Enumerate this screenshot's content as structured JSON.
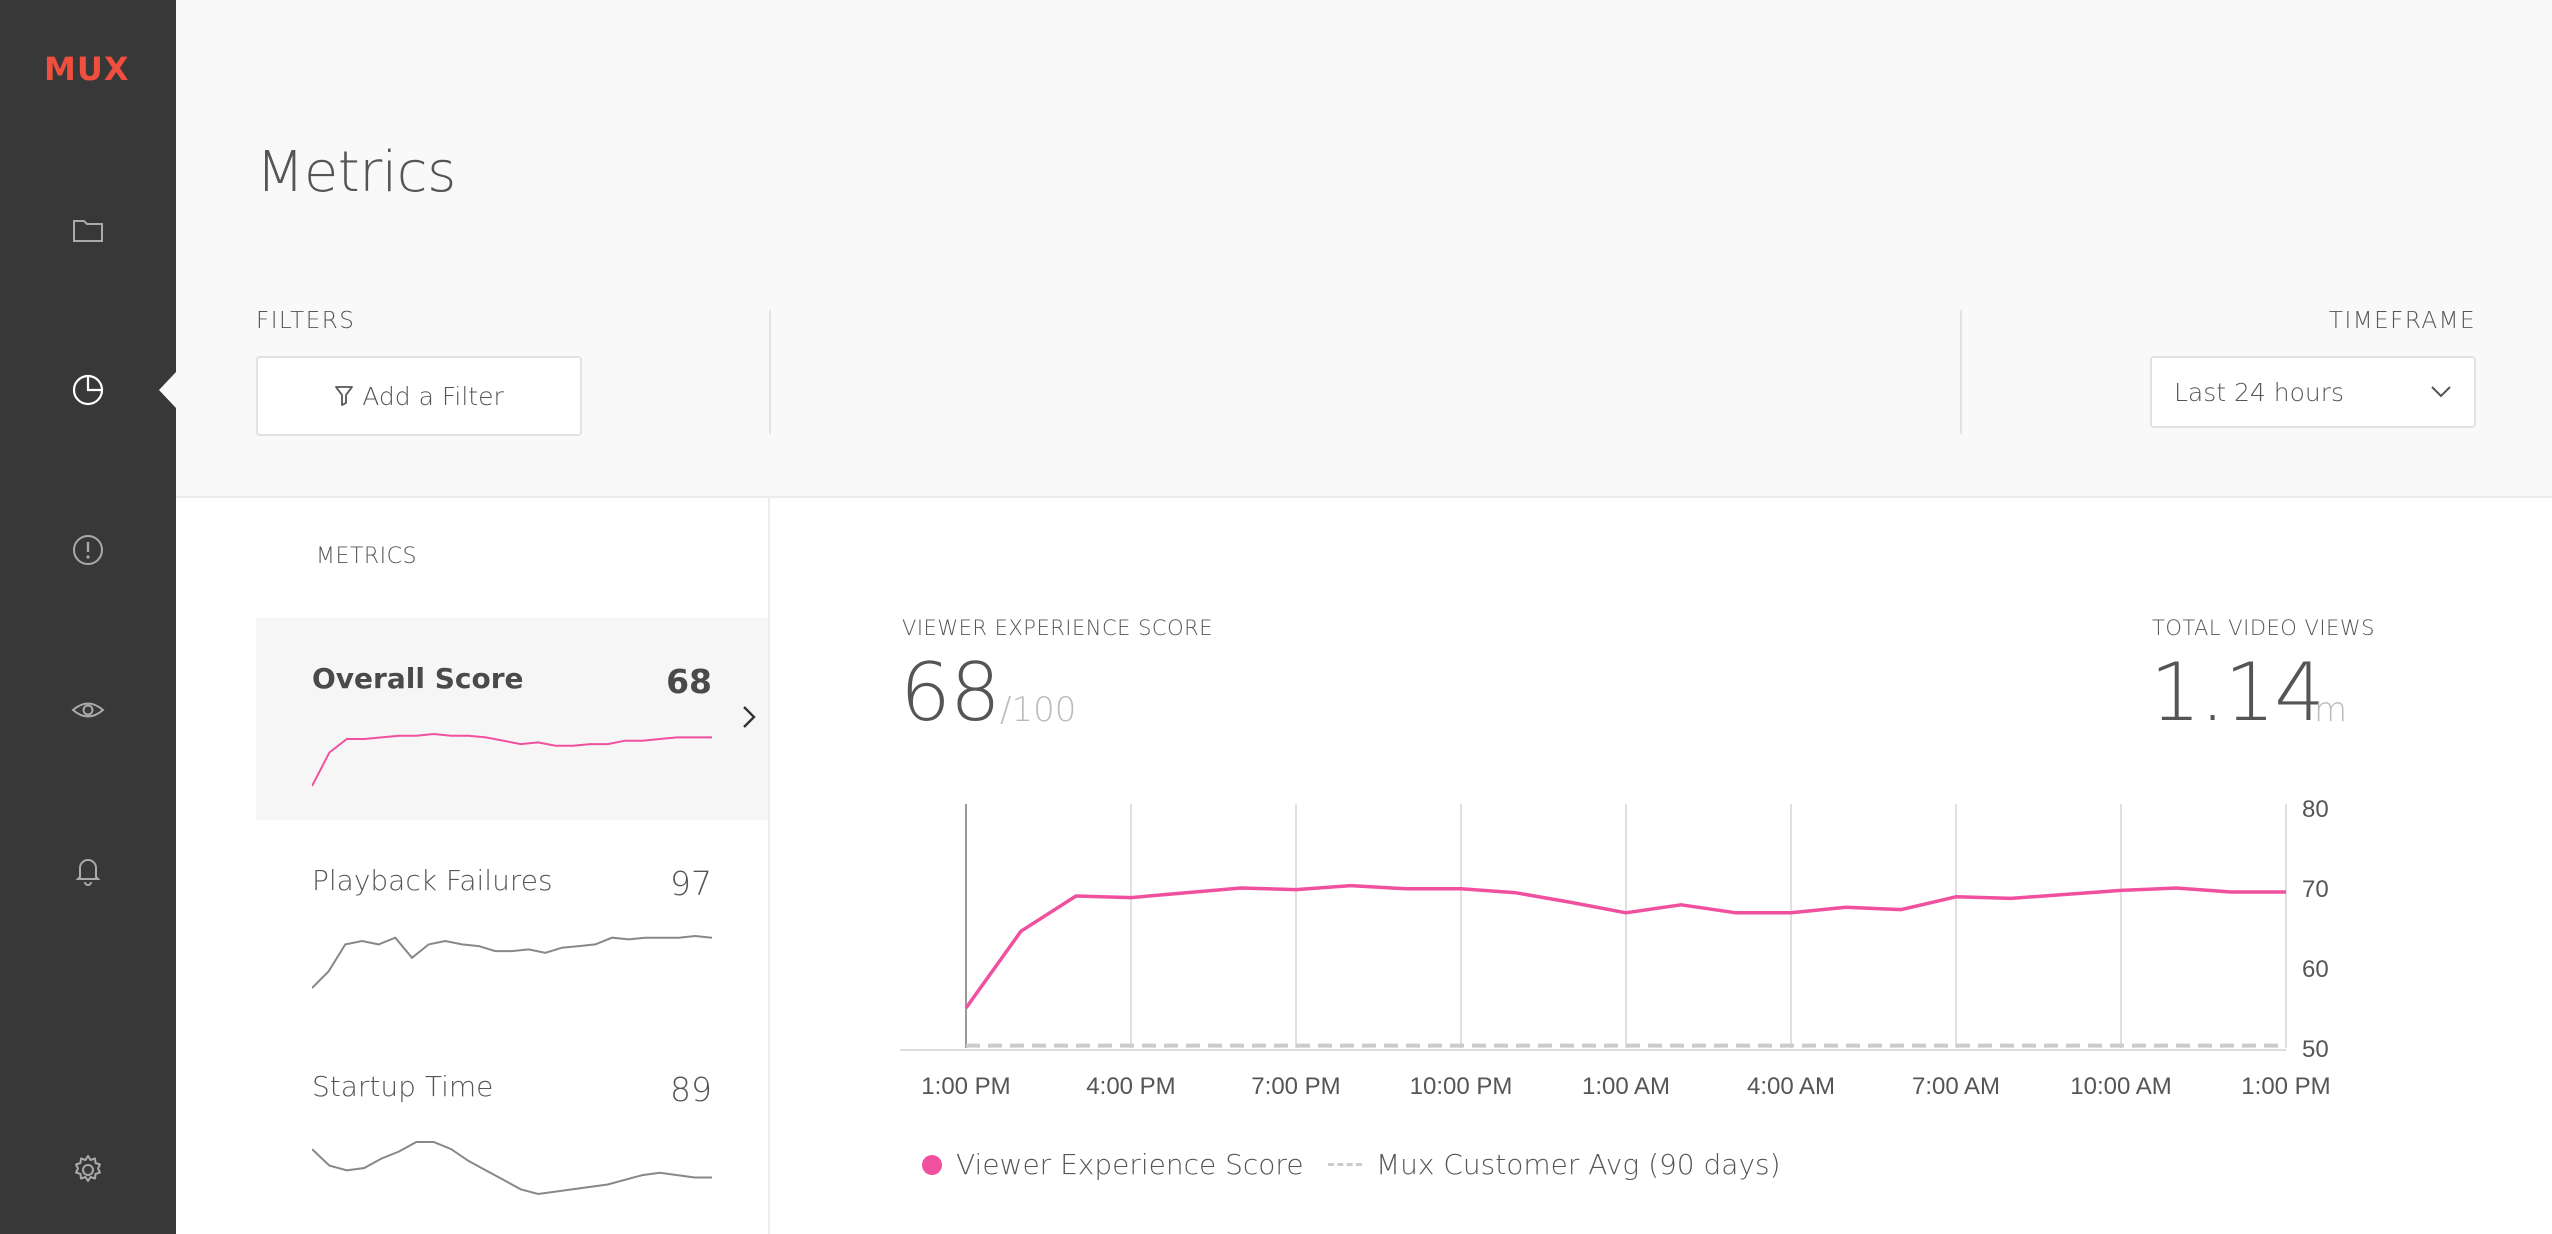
{
  "app": {
    "logo": "MUX",
    "accent": "#f0509e"
  },
  "sidebar": {
    "items": [
      {
        "name": "folder-icon"
      },
      {
        "name": "pie-chart-icon",
        "active": true
      },
      {
        "name": "alert-icon"
      },
      {
        "name": "eye-icon"
      },
      {
        "name": "bell-icon"
      },
      {
        "name": "gear-icon"
      }
    ]
  },
  "header": {
    "title": "Metrics",
    "filters_label": "FILTERS",
    "add_filter_label": "Add a Filter",
    "timeframe_label": "TIMEFRAME",
    "timeframe_value": "Last 24 hours"
  },
  "metrics_panel": {
    "label": "METRICS",
    "items": [
      {
        "name": "Overall Score",
        "value": "68",
        "selected": true,
        "spark": [
          55,
          65,
          69,
          69,
          69.5,
          70,
          70,
          70.5,
          70,
          70,
          69.5,
          68.5,
          67.5,
          68,
          67,
          67,
          67.5,
          67.5,
          68.5,
          68.5,
          69,
          69.5,
          69.5,
          69.5
        ]
      },
      {
        "name": "Playback Failures",
        "value": "97",
        "selected": false,
        "spark": [
          94,
          95,
          96.6,
          96.8,
          96.6,
          97,
          95.8,
          96.6,
          96.8,
          96.6,
          96.5,
          96.2,
          96.2,
          96.3,
          96.1,
          96.4,
          96.5,
          96.6,
          97,
          96.9,
          97,
          97,
          97,
          97.1,
          97
        ]
      },
      {
        "name": "Startup Time",
        "value": "89",
        "selected": false,
        "spark": [
          89.5,
          88.8,
          88.6,
          88.7,
          89.1,
          89.4,
          89.8,
          89.8,
          89.5,
          89.0,
          88.6,
          88.2,
          87.8,
          87.6,
          87.7,
          87.8,
          87.9,
          88.0,
          88.2,
          88.4,
          88.5,
          88.4,
          88.3,
          88.3
        ]
      }
    ]
  },
  "score": {
    "label": "VIEWER EXPERIENCE SCORE",
    "value": "68",
    "suffix": "/100"
  },
  "views": {
    "label": "TOTAL VIDEO VIEWS",
    "value": "1.14",
    "suffix": "m"
  },
  "chart_data": {
    "type": "line",
    "x": [
      "1:00 PM",
      "",
      "",
      "4:00 PM",
      "",
      "",
      "7:00 PM",
      "",
      "",
      "10:00 PM",
      "",
      "",
      "1:00 AM",
      "",
      "",
      "4:00 AM",
      "",
      "",
      "7:00 AM",
      "",
      "",
      "10:00 AM",
      "",
      "",
      "1:00 PM"
    ],
    "xticks": [
      "1:00 PM",
      "4:00 PM",
      "7:00 PM",
      "10:00 PM",
      "1:00 AM",
      "4:00 AM",
      "7:00 AM",
      "10:00 AM",
      "1:00 PM"
    ],
    "yticks": [
      "80",
      "70",
      "60",
      "50"
    ],
    "ylim": [
      50,
      80
    ],
    "series": [
      {
        "name": "Viewer Experience Score",
        "color": "#f0509e",
        "values": [
          55,
          64.6,
          69,
          68.8,
          69.4,
          70,
          69.8,
          70.3,
          69.9,
          69.9,
          69.4,
          68.2,
          66.9,
          67.9,
          66.9,
          66.9,
          67.6,
          67.3,
          68.9,
          68.7,
          69.2,
          69.7,
          70,
          69.5,
          69.5
        ]
      },
      {
        "name": "Mux Customer Avg (90 days)",
        "color": "#cccccc",
        "dashed": true,
        "values": [
          50.3,
          50.3,
          50.3,
          50.3,
          50.3,
          50.3,
          50.3,
          50.3,
          50.3,
          50.3,
          50.3,
          50.3,
          50.3,
          50.3,
          50.3,
          50.3,
          50.3,
          50.3,
          50.3,
          50.3,
          50.3,
          50.3,
          50.3,
          50.3,
          50.3
        ]
      }
    ],
    "grid": true
  }
}
